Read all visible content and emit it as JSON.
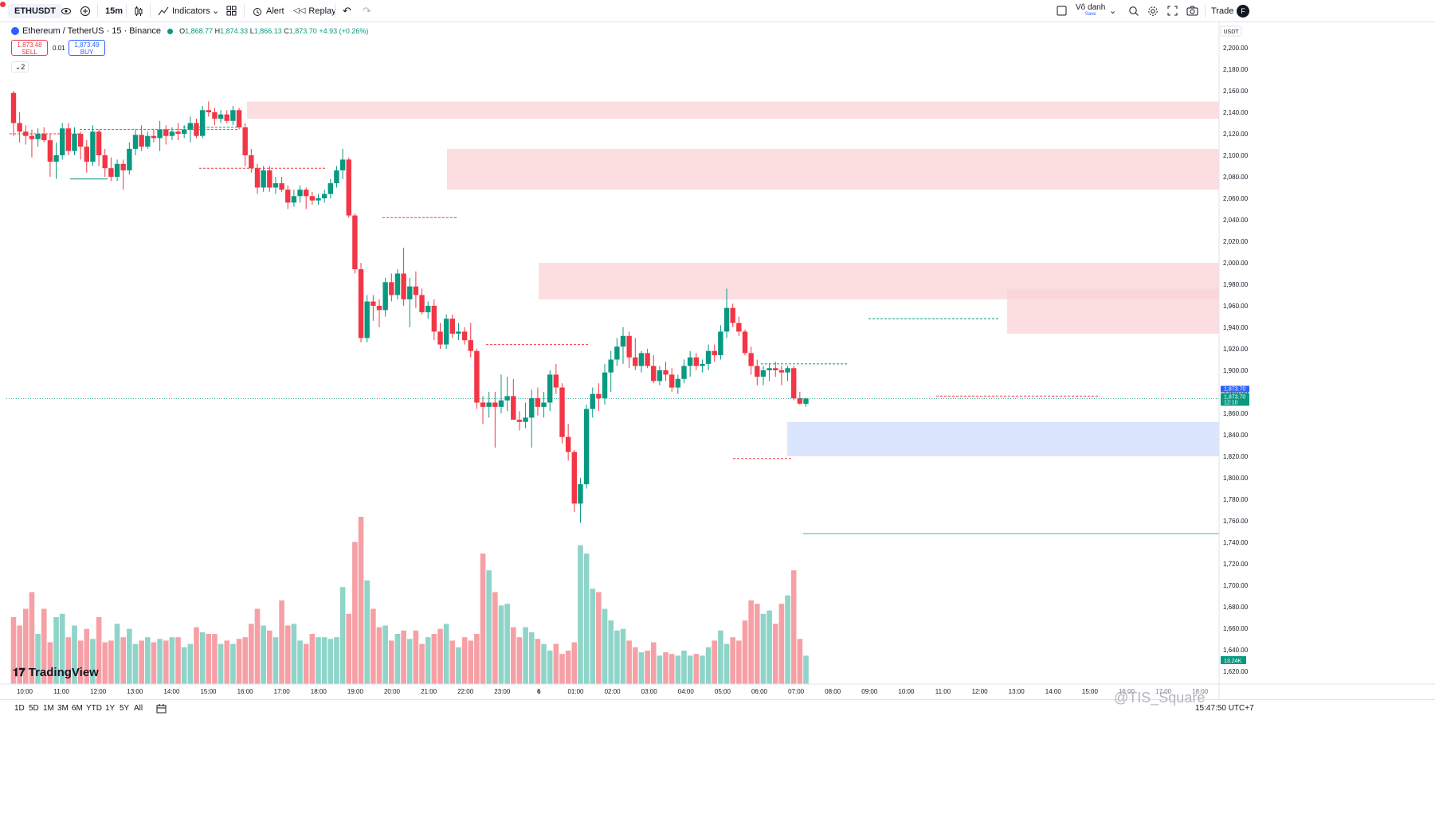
{
  "toolbar": {
    "symbol": "ETHUSDT",
    "interval": "15m",
    "indicators_label": "Indicators",
    "alert_label": "Alert",
    "replay_label": "Replay",
    "layout_name": "Vô danh",
    "layout_sub": "Save",
    "trade_label": "Trade",
    "notification_badge": "F"
  },
  "legend": {
    "title": "Ethereum / TetherUS · 15 · Binance",
    "o_label": "O",
    "o": "1,868.77",
    "h_label": "H",
    "h": "1,874.33",
    "l_label": "L",
    "l": "1,866.13",
    "c_label": "C",
    "c": "1,873.70",
    "change": "+4.93 (+0.26%)"
  },
  "trade": {
    "sell_price": "1,873.48",
    "sell_label": "SELL",
    "qty": "0.01",
    "buy_price": "1,873.49",
    "buy_label": "BUY",
    "collapse_label": "2"
  },
  "price_axis": {
    "currency": "USDT",
    "ticks": [
      "2,200.00",
      "2,180.00",
      "2,160.00",
      "2,140.00",
      "2,120.00",
      "2,100.00",
      "2,080.00",
      "2,060.00",
      "2,040.00",
      "2,020.00",
      "2,000.00",
      "1,980.00",
      "1,960.00",
      "1,940.00",
      "1,920.00",
      "1,900.00",
      "1,880.00",
      "1,860.00",
      "1,840.00",
      "1,820.00",
      "1,800.00",
      "1,780.00",
      "1,760.00",
      "1,740.00",
      "1,720.00",
      "1,700.00",
      "1,680.00",
      "1,660.00",
      "1,640.00",
      "1,620.00"
    ],
    "last_price_label": "1,873.70",
    "last_price_label2": "1,873.70",
    "countdown": "12:10",
    "volume_label": "13.24K"
  },
  "time_axis": {
    "ticks": [
      "10:00",
      "11:00",
      "12:00",
      "13:00",
      "14:00",
      "15:00",
      "16:00",
      "17:00",
      "18:00",
      "19:00",
      "20:00",
      "21:00",
      "22:00",
      "23:00",
      "6",
      "01:00",
      "02:00",
      "03:00",
      "04:00",
      "05:00",
      "06:00",
      "07:00",
      "08:00",
      "09:00",
      "10:00",
      "11:00",
      "12:00",
      "13:00",
      "14:00",
      "15:00",
      "16:00",
      "17:00",
      "18:00"
    ]
  },
  "bottom": {
    "ranges": [
      "1D",
      "5D",
      "1M",
      "3M",
      "6M",
      "YTD",
      "1Y",
      "5Y",
      "All"
    ],
    "clock": "15:47:50 UTC+7",
    "watermark": "@TIS_Square",
    "logo": "TradingView"
  },
  "colors": {
    "up": "#089981",
    "down": "#f23645",
    "vol_up": "#8fd4c8",
    "vol_down": "#f6a0a6",
    "supply_zone": "#fbd3d6",
    "demand_zone": "#cfdcfb"
  },
  "chart_data": {
    "type": "candlestick",
    "symbol": "ETHUSDT",
    "interval": "15",
    "ylim": [
      1610,
      2210
    ],
    "candles": [
      {
        "o": 2158,
        "h": 2160,
        "l": 2118,
        "c": 2130,
        "v": 0.4
      },
      {
        "o": 2130,
        "h": 2140,
        "l": 2112,
        "c": 2122,
        "v": 0.35
      },
      {
        "o": 2122,
        "h": 2128,
        "l": 2110,
        "c": 2118,
        "v": 0.45
      },
      {
        "o": 2118,
        "h": 2124,
        "l": 2098,
        "c": 2115,
        "v": 0.55
      },
      {
        "o": 2115,
        "h": 2125,
        "l": 2108,
        "c": 2120,
        "v": 0.3
      },
      {
        "o": 2120,
        "h": 2126,
        "l": 2112,
        "c": 2114,
        "v": 0.45
      },
      {
        "o": 2114,
        "h": 2120,
        "l": 2080,
        "c": 2094,
        "v": 0.25
      },
      {
        "o": 2094,
        "h": 2112,
        "l": 2078,
        "c": 2100,
        "v": 0.4
      },
      {
        "o": 2100,
        "h": 2130,
        "l": 2096,
        "c": 2125,
        "v": 0.42
      },
      {
        "o": 2125,
        "h": 2130,
        "l": 2100,
        "c": 2104,
        "v": 0.28
      },
      {
        "o": 2104,
        "h": 2126,
        "l": 2100,
        "c": 2120,
        "v": 0.35
      },
      {
        "o": 2120,
        "h": 2122,
        "l": 2096,
        "c": 2108,
        "v": 0.26
      },
      {
        "o": 2108,
        "h": 2114,
        "l": 2084,
        "c": 2094,
        "v": 0.33
      },
      {
        "o": 2094,
        "h": 2128,
        "l": 2090,
        "c": 2122,
        "v": 0.27
      },
      {
        "o": 2122,
        "h": 2124,
        "l": 2090,
        "c": 2100,
        "v": 0.4
      },
      {
        "o": 2100,
        "h": 2106,
        "l": 2080,
        "c": 2088,
        "v": 0.25
      },
      {
        "o": 2088,
        "h": 2098,
        "l": 2076,
        "c": 2080,
        "v": 0.26
      },
      {
        "o": 2080,
        "h": 2096,
        "l": 2076,
        "c": 2092,
        "v": 0.36
      },
      {
        "o": 2092,
        "h": 2096,
        "l": 2068,
        "c": 2086,
        "v": 0.28
      },
      {
        "o": 2086,
        "h": 2112,
        "l": 2082,
        "c": 2106,
        "v": 0.33
      },
      {
        "o": 2106,
        "h": 2124,
        "l": 2100,
        "c": 2119,
        "v": 0.24
      },
      {
        "o": 2119,
        "h": 2128,
        "l": 2104,
        "c": 2108,
        "v": 0.26
      },
      {
        "o": 2108,
        "h": 2122,
        "l": 2106,
        "c": 2118,
        "v": 0.28
      },
      {
        "o": 2118,
        "h": 2124,
        "l": 2112,
        "c": 2116,
        "v": 0.25
      },
      {
        "o": 2116,
        "h": 2132,
        "l": 2104,
        "c": 2124,
        "v": 0.27
      },
      {
        "o": 2124,
        "h": 2128,
        "l": 2110,
        "c": 2118,
        "v": 0.26
      },
      {
        "o": 2118,
        "h": 2126,
        "l": 2114,
        "c": 2122,
        "v": 0.28
      },
      {
        "o": 2122,
        "h": 2130,
        "l": 2114,
        "c": 2120,
        "v": 0.28
      },
      {
        "o": 2120,
        "h": 2128,
        "l": 2116,
        "c": 2124,
        "v": 0.22
      },
      {
        "o": 2124,
        "h": 2136,
        "l": 2112,
        "c": 2130,
        "v": 0.24
      },
      {
        "o": 2130,
        "h": 2134,
        "l": 2116,
        "c": 2118,
        "v": 0.34
      },
      {
        "o": 2118,
        "h": 2146,
        "l": 2116,
        "c": 2142,
        "v": 0.31
      },
      {
        "o": 2142,
        "h": 2150,
        "l": 2136,
        "c": 2140,
        "v": 0.3
      },
      {
        "o": 2140,
        "h": 2144,
        "l": 2128,
        "c": 2134,
        "v": 0.3
      },
      {
        "o": 2134,
        "h": 2142,
        "l": 2130,
        "c": 2138,
        "v": 0.24
      },
      {
        "o": 2138,
        "h": 2142,
        "l": 2130,
        "c": 2132,
        "v": 0.26
      },
      {
        "o": 2132,
        "h": 2146,
        "l": 2128,
        "c": 2142,
        "v": 0.24
      },
      {
        "o": 2142,
        "h": 2144,
        "l": 2124,
        "c": 2126,
        "v": 0.27
      },
      {
        "o": 2126,
        "h": 2130,
        "l": 2090,
        "c": 2100,
        "v": 0.28
      },
      {
        "o": 2100,
        "h": 2106,
        "l": 2084,
        "c": 2088,
        "v": 0.36
      },
      {
        "o": 2088,
        "h": 2092,
        "l": 2064,
        "c": 2070,
        "v": 0.45
      },
      {
        "o": 2070,
        "h": 2090,
        "l": 2066,
        "c": 2086,
        "v": 0.35
      },
      {
        "o": 2086,
        "h": 2090,
        "l": 2066,
        "c": 2070,
        "v": 0.32
      },
      {
        "o": 2070,
        "h": 2080,
        "l": 2064,
        "c": 2074,
        "v": 0.28
      },
      {
        "o": 2074,
        "h": 2080,
        "l": 2066,
        "c": 2068,
        "v": 0.5
      },
      {
        "o": 2068,
        "h": 2072,
        "l": 2050,
        "c": 2056,
        "v": 0.35
      },
      {
        "o": 2056,
        "h": 2068,
        "l": 2052,
        "c": 2062,
        "v": 0.36
      },
      {
        "o": 2062,
        "h": 2072,
        "l": 2056,
        "c": 2068,
        "v": 0.26
      },
      {
        "o": 2068,
        "h": 2070,
        "l": 2050,
        "c": 2062,
        "v": 0.24
      },
      {
        "o": 2062,
        "h": 2066,
        "l": 2054,
        "c": 2058,
        "v": 0.3
      },
      {
        "o": 2058,
        "h": 2064,
        "l": 2054,
        "c": 2060,
        "v": 0.28
      },
      {
        "o": 2060,
        "h": 2068,
        "l": 2056,
        "c": 2064,
        "v": 0.28
      },
      {
        "o": 2064,
        "h": 2078,
        "l": 2060,
        "c": 2074,
        "v": 0.27
      },
      {
        "o": 2074,
        "h": 2090,
        "l": 2070,
        "c": 2086,
        "v": 0.28
      },
      {
        "o": 2086,
        "h": 2106,
        "l": 2078,
        "c": 2096,
        "v": 0.58
      },
      {
        "o": 2096,
        "h": 2098,
        "l": 2042,
        "c": 2044,
        "v": 0.42
      },
      {
        "o": 2044,
        "h": 2046,
        "l": 1990,
        "c": 1994,
        "v": 0.85
      },
      {
        "o": 1994,
        "h": 2000,
        "l": 1926,
        "c": 1930,
        "v": 1.0
      },
      {
        "o": 1930,
        "h": 1970,
        "l": 1926,
        "c": 1964,
        "v": 0.62
      },
      {
        "o": 1964,
        "h": 1970,
        "l": 1946,
        "c": 1960,
        "v": 0.45
      },
      {
        "o": 1960,
        "h": 1966,
        "l": 1940,
        "c": 1956,
        "v": 0.34
      },
      {
        "o": 1956,
        "h": 1986,
        "l": 1950,
        "c": 1982,
        "v": 0.35
      },
      {
        "o": 1982,
        "h": 1990,
        "l": 1964,
        "c": 1970,
        "v": 0.26
      },
      {
        "o": 1970,
        "h": 1994,
        "l": 1966,
        "c": 1990,
        "v": 0.3
      },
      {
        "o": 1990,
        "h": 2014,
        "l": 1960,
        "c": 1966,
        "v": 0.32
      },
      {
        "o": 1966,
        "h": 1986,
        "l": 1940,
        "c": 1978,
        "v": 0.27
      },
      {
        "o": 1978,
        "h": 1992,
        "l": 1958,
        "c": 1970,
        "v": 0.32
      },
      {
        "o": 1970,
        "h": 1976,
        "l": 1952,
        "c": 1954,
        "v": 0.24
      },
      {
        "o": 1954,
        "h": 1964,
        "l": 1948,
        "c": 1960,
        "v": 0.28
      },
      {
        "o": 1960,
        "h": 1966,
        "l": 1928,
        "c": 1936,
        "v": 0.3
      },
      {
        "o": 1936,
        "h": 1944,
        "l": 1920,
        "c": 1924,
        "v": 0.33
      },
      {
        "o": 1924,
        "h": 1952,
        "l": 1920,
        "c": 1948,
        "v": 0.36
      },
      {
        "o": 1948,
        "h": 1952,
        "l": 1930,
        "c": 1934,
        "v": 0.26
      },
      {
        "o": 1934,
        "h": 1944,
        "l": 1928,
        "c": 1936,
        "v": 0.22
      },
      {
        "o": 1936,
        "h": 1940,
        "l": 1924,
        "c": 1928,
        "v": 0.28
      },
      {
        "o": 1928,
        "h": 1944,
        "l": 1912,
        "c": 1918,
        "v": 0.26
      },
      {
        "o": 1918,
        "h": 1920,
        "l": 1864,
        "c": 1870,
        "v": 0.3
      },
      {
        "o": 1870,
        "h": 1876,
        "l": 1850,
        "c": 1866,
        "v": 0.78
      },
      {
        "o": 1866,
        "h": 1880,
        "l": 1856,
        "c": 1870,
        "v": 0.68
      },
      {
        "o": 1870,
        "h": 1880,
        "l": 1828,
        "c": 1866,
        "v": 0.55
      },
      {
        "o": 1866,
        "h": 1896,
        "l": 1860,
        "c": 1872,
        "v": 0.47
      },
      {
        "o": 1872,
        "h": 1894,
        "l": 1862,
        "c": 1876,
        "v": 0.48
      },
      {
        "o": 1876,
        "h": 1892,
        "l": 1854,
        "c": 1854,
        "v": 0.34
      },
      {
        "o": 1854,
        "h": 1862,
        "l": 1844,
        "c": 1852,
        "v": 0.28
      },
      {
        "o": 1852,
        "h": 1870,
        "l": 1846,
        "c": 1856,
        "v": 0.34
      },
      {
        "o": 1856,
        "h": 1882,
        "l": 1828,
        "c": 1874,
        "v": 0.31
      },
      {
        "o": 1874,
        "h": 1884,
        "l": 1858,
        "c": 1866,
        "v": 0.27
      },
      {
        "o": 1866,
        "h": 1880,
        "l": 1856,
        "c": 1870,
        "v": 0.24
      },
      {
        "o": 1870,
        "h": 1900,
        "l": 1862,
        "c": 1896,
        "v": 0.2
      },
      {
        "o": 1896,
        "h": 1906,
        "l": 1878,
        "c": 1884,
        "v": 0.24
      },
      {
        "o": 1884,
        "h": 1888,
        "l": 1832,
        "c": 1838,
        "v": 0.18
      },
      {
        "o": 1838,
        "h": 1850,
        "l": 1816,
        "c": 1824,
        "v": 0.2
      },
      {
        "o": 1824,
        "h": 1826,
        "l": 1768,
        "c": 1776,
        "v": 0.25
      },
      {
        "o": 1776,
        "h": 1800,
        "l": 1758,
        "c": 1794,
        "v": 0.83
      },
      {
        "o": 1794,
        "h": 1868,
        "l": 1790,
        "c": 1864,
        "v": 0.78
      },
      {
        "o": 1864,
        "h": 1884,
        "l": 1856,
        "c": 1878,
        "v": 0.57
      },
      {
        "o": 1878,
        "h": 1888,
        "l": 1862,
        "c": 1874,
        "v": 0.55
      },
      {
        "o": 1874,
        "h": 1906,
        "l": 1868,
        "c": 1898,
        "v": 0.45
      },
      {
        "o": 1898,
        "h": 1918,
        "l": 1880,
        "c": 1910,
        "v": 0.38
      },
      {
        "o": 1910,
        "h": 1930,
        "l": 1904,
        "c": 1922,
        "v": 0.32
      },
      {
        "o": 1922,
        "h": 1940,
        "l": 1906,
        "c": 1932,
        "v": 0.33
      },
      {
        "o": 1932,
        "h": 1936,
        "l": 1902,
        "c": 1912,
        "v": 0.26
      },
      {
        "o": 1912,
        "h": 1930,
        "l": 1900,
        "c": 1904,
        "v": 0.22
      },
      {
        "o": 1904,
        "h": 1918,
        "l": 1898,
        "c": 1916,
        "v": 0.19
      },
      {
        "o": 1916,
        "h": 1920,
        "l": 1902,
        "c": 1904,
        "v": 0.2
      },
      {
        "o": 1904,
        "h": 1914,
        "l": 1888,
        "c": 1890,
        "v": 0.25
      },
      {
        "o": 1890,
        "h": 1904,
        "l": 1886,
        "c": 1900,
        "v": 0.17
      },
      {
        "o": 1900,
        "h": 1908,
        "l": 1890,
        "c": 1896,
        "v": 0.19
      },
      {
        "o": 1896,
        "h": 1902,
        "l": 1880,
        "c": 1884,
        "v": 0.18
      },
      {
        "o": 1884,
        "h": 1896,
        "l": 1878,
        "c": 1892,
        "v": 0.17
      },
      {
        "o": 1892,
        "h": 1910,
        "l": 1888,
        "c": 1904,
        "v": 0.2
      },
      {
        "o": 1904,
        "h": 1918,
        "l": 1894,
        "c": 1912,
        "v": 0.17
      },
      {
        "o": 1912,
        "h": 1916,
        "l": 1900,
        "c": 1904,
        "v": 0.18
      },
      {
        "o": 1904,
        "h": 1910,
        "l": 1898,
        "c": 1906,
        "v": 0.17
      },
      {
        "o": 1906,
        "h": 1924,
        "l": 1900,
        "c": 1918,
        "v": 0.22
      },
      {
        "o": 1918,
        "h": 1924,
        "l": 1908,
        "c": 1914,
        "v": 0.26
      },
      {
        "o": 1914,
        "h": 1942,
        "l": 1910,
        "c": 1936,
        "v": 0.32
      },
      {
        "o": 1936,
        "h": 1976,
        "l": 1930,
        "c": 1958,
        "v": 0.24
      },
      {
        "o": 1958,
        "h": 1962,
        "l": 1940,
        "c": 1944,
        "v": 0.28
      },
      {
        "o": 1944,
        "h": 1950,
        "l": 1932,
        "c": 1936,
        "v": 0.26
      },
      {
        "o": 1936,
        "h": 1938,
        "l": 1914,
        "c": 1916,
        "v": 0.38
      },
      {
        "o": 1916,
        "h": 1922,
        "l": 1896,
        "c": 1904,
        "v": 0.5
      },
      {
        "o": 1904,
        "h": 1910,
        "l": 1886,
        "c": 1894,
        "v": 0.48
      },
      {
        "o": 1894,
        "h": 1904,
        "l": 1886,
        "c": 1900,
        "v": 0.42
      },
      {
        "o": 1900,
        "h": 1906,
        "l": 1890,
        "c": 1902,
        "v": 0.44
      },
      {
        "o": 1902,
        "h": 1908,
        "l": 1894,
        "c": 1900,
        "v": 0.36
      },
      {
        "o": 1900,
        "h": 1904,
        "l": 1886,
        "c": 1898,
        "v": 0.48
      },
      {
        "o": 1898,
        "h": 1904,
        "l": 1890,
        "c": 1902,
        "v": 0.53
      },
      {
        "o": 1902,
        "h": 1904,
        "l": 1872,
        "c": 1874,
        "v": 0.68
      },
      {
        "o": 1874,
        "h": 1880,
        "l": 1868,
        "c": 1869,
        "v": 0.27
      },
      {
        "o": 1868.77,
        "h": 1874.33,
        "l": 1866.13,
        "c": 1873.7,
        "v": 0.17
      }
    ],
    "zones": [
      {
        "kind": "supply",
        "top": 2150,
        "bottom": 2134
      },
      {
        "kind": "supply",
        "top": 2106,
        "bottom": 2068
      },
      {
        "kind": "supply",
        "top": 2000,
        "bottom": 1966
      },
      {
        "kind": "supply",
        "top": 1976,
        "bottom": 1934
      },
      {
        "kind": "demand",
        "top": 1852,
        "bottom": 1820
      }
    ],
    "horizontal_line": 1748,
    "last_price": 1873.7
  }
}
